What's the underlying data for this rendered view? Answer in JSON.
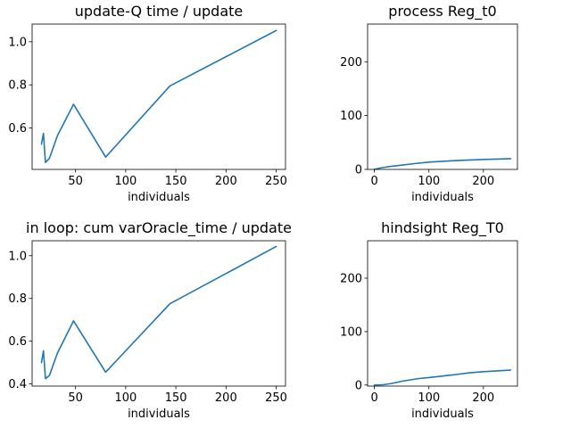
{
  "chart_data": [
    {
      "type": "line",
      "title": "update-Q time / update",
      "xlabel": "individuals",
      "ylabel": "",
      "xlim": [
        6.7,
        259.3
      ],
      "ylim": [
        0.408,
        1.082
      ],
      "xticks": [
        50,
        100,
        150,
        200,
        250
      ],
      "yticks": [
        0.6,
        0.8,
        1.0
      ],
      "ytick_labels": [
        "0.6",
        "0.8",
        "1.0"
      ],
      "grid": false,
      "color": "#1f77b4",
      "series": [
        {
          "x": [
            16,
            18,
            20,
            24,
            32,
            48,
            80,
            144,
            250
          ],
          "y": [
            0.525,
            0.575,
            0.44,
            0.46,
            0.565,
            0.71,
            0.465,
            0.795,
            1.052
          ]
        }
      ]
    },
    {
      "type": "line",
      "title": "process Reg_t0",
      "xlabel": "individuals",
      "ylabel": "",
      "xlim": [
        -12.5,
        262.5
      ],
      "ylim": [
        0,
        270
      ],
      "xticks": [
        0,
        100,
        200
      ],
      "yticks": [
        0,
        100,
        200
      ],
      "ytick_labels": [
        "0",
        "100",
        "200"
      ],
      "grid": false,
      "color": "#1f77b4",
      "series": [
        {
          "x": [
            0,
            10,
            25,
            50,
            75,
            100,
            125,
            150,
            175,
            200,
            225,
            250
          ],
          "y": [
            0,
            2.5,
            5,
            8,
            11,
            13.5,
            15,
            16.5,
            17.5,
            18.5,
            19.2,
            20
          ]
        }
      ]
    },
    {
      "type": "line",
      "title": "in loop: cum varOracle_time / update",
      "xlabel": "individuals",
      "ylabel": "",
      "xlim": [
        6.7,
        259.3
      ],
      "ylim": [
        0.39,
        1.07
      ],
      "xticks": [
        50,
        100,
        150,
        200,
        250
      ],
      "yticks": [
        0.4,
        0.6,
        0.8,
        1.0
      ],
      "ytick_labels": [
        "0.4",
        "0.6",
        "0.8",
        "1.0"
      ],
      "grid": false,
      "color": "#1f77b4",
      "series": [
        {
          "x": [
            16,
            18,
            20,
            24,
            32,
            48,
            80,
            144,
            250
          ],
          "y": [
            0.5,
            0.555,
            0.425,
            0.44,
            0.545,
            0.695,
            0.455,
            0.775,
            1.043
          ]
        }
      ]
    },
    {
      "type": "line",
      "title": "hindsight Reg_T0",
      "xlabel": "individuals",
      "ylabel": "",
      "xlim": [
        -12.5,
        262.5
      ],
      "ylim": [
        -2,
        270
      ],
      "xticks": [
        0,
        100,
        200
      ],
      "yticks": [
        0,
        100,
        200
      ],
      "ytick_labels": [
        "0",
        "100",
        "200"
      ],
      "grid": false,
      "color": "#1f77b4",
      "series": [
        {
          "x": [
            0,
            16,
            32,
            50,
            80,
            100,
            144,
            175,
            200,
            250
          ],
          "y": [
            0,
            0.5,
            3,
            7,
            12,
            14,
            19,
            23,
            25,
            28
          ]
        }
      ]
    }
  ]
}
